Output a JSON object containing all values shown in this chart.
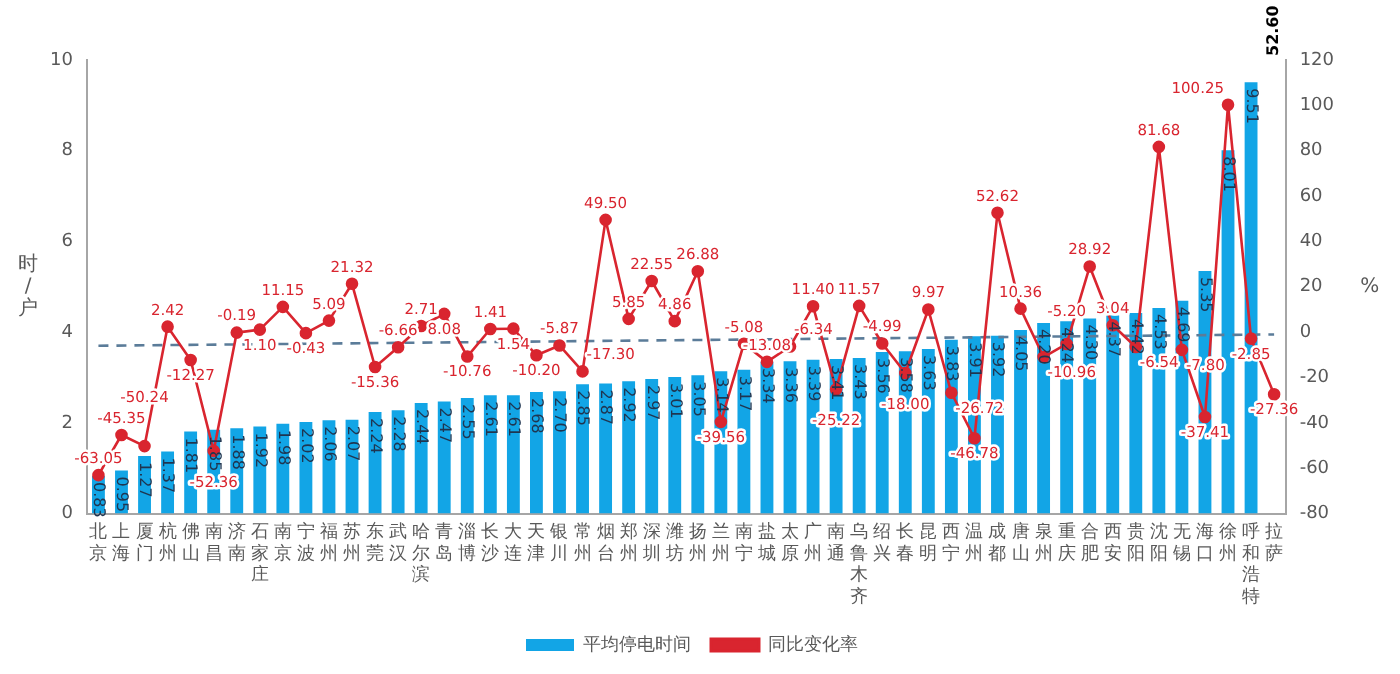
{
  "chart_data": {
    "type": "bar",
    "categories": [
      "北京",
      "上海",
      "厦门",
      "杭州",
      "佛山",
      "南昌",
      "济南",
      "石家庄",
      "南京",
      "宁波",
      "福州",
      "苏州",
      "东莞",
      "武汉",
      "哈尔滨",
      "青岛",
      "淄博",
      "长沙",
      "大连",
      "天津",
      "银川",
      "常州",
      "烟台",
      "郑州",
      "深圳",
      "潍坊",
      "扬州",
      "兰州",
      "南宁",
      "盐城",
      "太原",
      "广州",
      "南通",
      "乌鲁木齐",
      "绍兴",
      "长春",
      "昆明",
      "西宁",
      "温州",
      "成都",
      "唐山",
      "泉州",
      "重庆",
      "合肥",
      "西安",
      "贵阳",
      "沈阳",
      "无锡",
      "海口",
      "徐州",
      "呼和浩特",
      "拉萨"
    ],
    "series": [
      {
        "name": "平均停电时间",
        "color": "#12a5e6",
        "values": [
          0.83,
          0.95,
          1.27,
          1.37,
          1.81,
          1.85,
          1.88,
          1.92,
          1.98,
          2.02,
          2.06,
          2.07,
          2.24,
          2.28,
          2.44,
          2.47,
          2.55,
          2.61,
          2.61,
          2.68,
          2.7,
          2.85,
          2.87,
          2.92,
          2.97,
          3.01,
          3.05,
          3.14,
          3.17,
          3.34,
          3.36,
          3.39,
          3.41,
          3.43,
          3.56,
          3.58,
          3.63,
          3.83,
          3.91,
          3.92,
          4.05,
          4.2,
          4.24,
          4.3,
          4.37,
          4.42,
          4.53,
          4.69,
          5.35,
          8.01,
          9.51,
          null
        ],
        "value_labels": [
          "0.83",
          "0.95",
          "1.27",
          "1.37",
          "1.81",
          "1.85",
          "1.88",
          "1.92",
          "1.98",
          "2.02",
          "2.06",
          "2.07",
          "2.24",
          "2.28",
          "2.44",
          "2.47",
          "2.55",
          "2.61",
          "2.61",
          "2.68",
          "2.70",
          "2.85",
          "2.87",
          "2.92",
          "2.97",
          "3.01",
          "3.05",
          "3.14",
          "3.17",
          "3.34",
          "3.36",
          "3.39",
          "3.41",
          "3.43",
          "3.56",
          "3.58",
          "3.63",
          "3.83",
          "3.91",
          "3.92",
          "4.05",
          "4.20",
          "4.24",
          "4.30",
          "4.37",
          "4.42",
          "4.53",
          "4.69",
          "5.35",
          "8.01",
          "9.51",
          "52.60"
        ]
      },
      {
        "name": "同比变化率",
        "type": "line",
        "axis": "y2",
        "color": "#d9252f",
        "marker": "circle",
        "values": [
          -63.05,
          -45.35,
          -50.24,
          2.42,
          -12.27,
          -52.36,
          -0.19,
          1.1,
          11.15,
          -0.43,
          5.09,
          21.32,
          -15.36,
          -6.66,
          2.71,
          8.08,
          -10.76,
          1.41,
          1.54,
          -10.2,
          -5.87,
          -17.3,
          49.5,
          5.85,
          22.55,
          4.86,
          26.88,
          -39.56,
          -5.08,
          -13.08,
          -6.34,
          11.4,
          -25.22,
          11.57,
          -4.99,
          -18.0,
          9.97,
          -26.72,
          -46.78,
          52.62,
          10.36,
          -10.96,
          -5.2,
          28.92,
          3.04,
          -6.54,
          81.68,
          -7.8,
          -37.41,
          100.25,
          -2.85,
          -27.36
        ],
        "value_labels": [
          "-63.05",
          "-45.35",
          "-50.24",
          "2.42",
          "-12.27",
          "-52.36",
          "-0.19",
          "1.10",
          "11.15",
          "-0.43",
          "5.09",
          "21.32",
          "-15.36",
          "-6.66",
          "2.71",
          "8.08",
          "-10.76",
          "1.41",
          "1.54",
          "-10.20",
          "-5.87",
          "-17.30",
          "49.50",
          "5.85",
          "22.55",
          "4.86",
          "26.88",
          "-39.56",
          "-5.08",
          "-13.08",
          "-6.34",
          "11.40",
          "-25.22",
          "11.57",
          "-4.99",
          "-18.00",
          "9.97",
          "-26.72",
          "-46.78",
          "52.62",
          "10.36",
          "-10.96",
          "-5.20",
          "28.92",
          "3.04",
          "-6.54",
          "81.68",
          "-7.80",
          "-37.41",
          "100.25",
          "-2.85",
          "-27.36"
        ]
      },
      {
        "type": "line",
        "axis": "y2",
        "color": "#5b7c99",
        "line_style": "dashed",
        "marker": "none",
        "x": [
          "北京",
          "拉萨"
        ],
        "values": [
          -6,
          -1
        ]
      }
    ],
    "ylabel": "时/户",
    "y2label": "%",
    "ylim": [
      0,
      10
    ],
    "yticks": [
      0,
      2,
      4,
      6,
      8,
      10
    ],
    "y2lim": [
      -80,
      120
    ],
    "y2ticks": [
      -80,
      -60,
      -40,
      -20,
      0,
      20,
      40,
      60,
      80,
      100,
      120
    ],
    "grid": false,
    "legend": "bottom"
  }
}
